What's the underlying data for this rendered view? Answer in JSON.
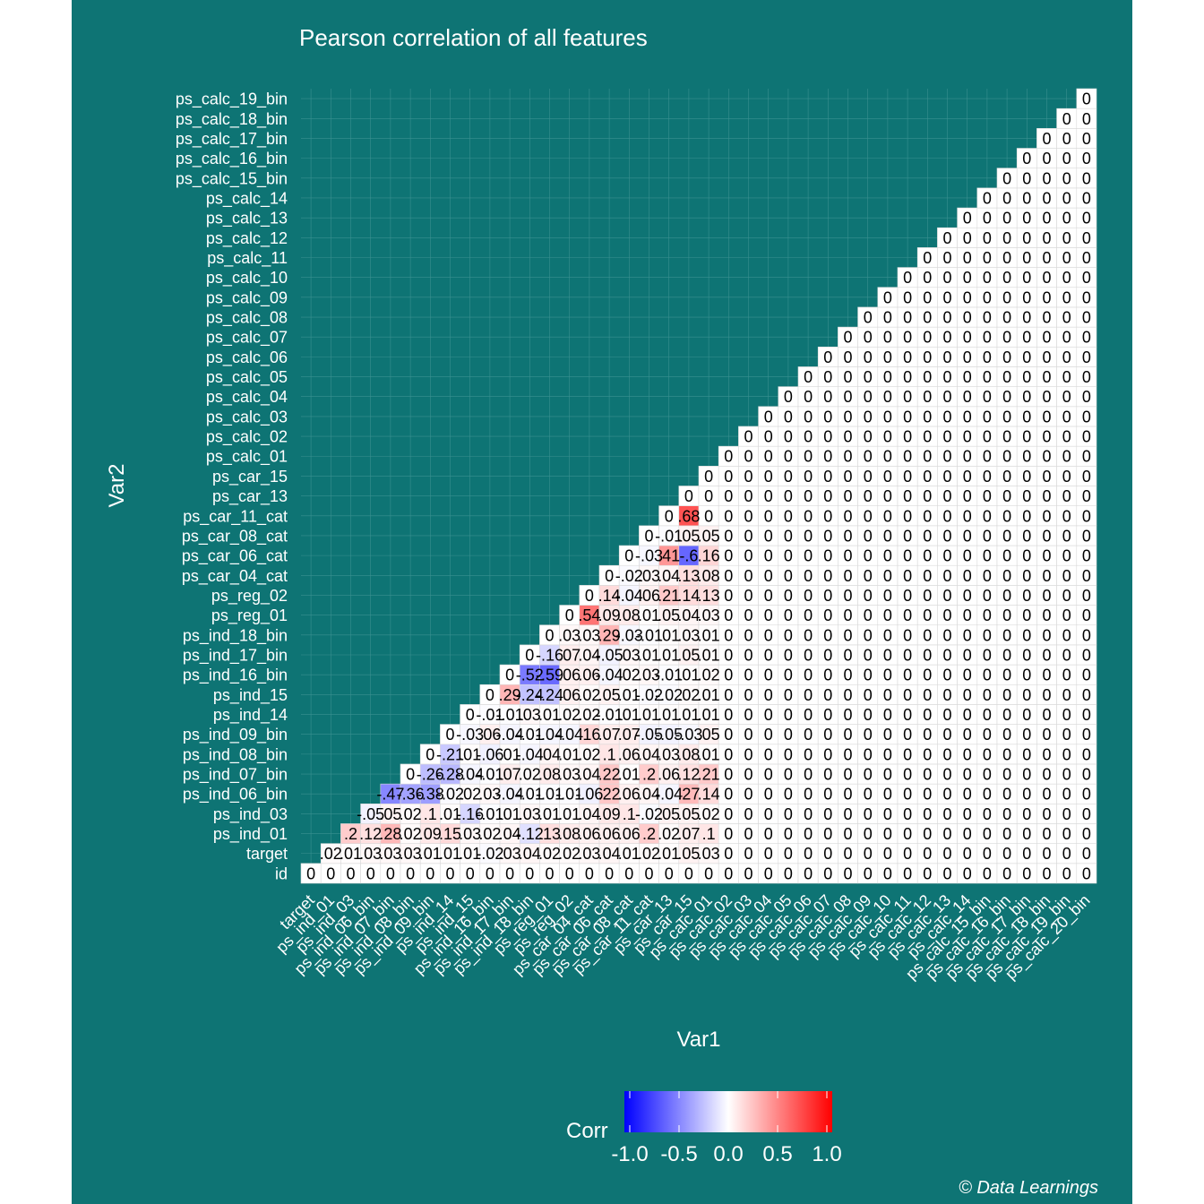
{
  "chart_data": {
    "type": "heatmap",
    "title": "Pearson correlation of all features",
    "xlabel": "Var1",
    "ylabel": "Var2",
    "caption": "© Data Learnings",
    "variables": [
      "id",
      "target",
      "ps_ind_01",
      "ps_ind_03",
      "ps_ind_06_bin",
      "ps_ind_07_bin",
      "ps_ind_08_bin",
      "ps_ind_09_bin",
      "ps_ind_14",
      "ps_ind_15",
      "ps_ind_16_bin",
      "ps_ind_17_bin",
      "ps_ind_18_bin",
      "ps_reg_01",
      "ps_reg_02",
      "ps_car_04_cat",
      "ps_car_06_cat",
      "ps_car_08_cat",
      "ps_car_11_cat",
      "ps_car_13",
      "ps_car_15",
      "ps_calc_01",
      "ps_calc_02",
      "ps_calc_03",
      "ps_calc_04",
      "ps_calc_05",
      "ps_calc_06",
      "ps_calc_07",
      "ps_calc_08",
      "ps_calc_09",
      "ps_calc_10",
      "ps_calc_11",
      "ps_calc_12",
      "ps_calc_13",
      "ps_calc_14",
      "ps_calc_15_bin",
      "ps_calc_16_bin",
      "ps_calc_17_bin",
      "ps_calc_18_bin",
      "ps_calc_19_bin",
      "ps_calc_20_bin"
    ],
    "x_tick_labels": [
      "target",
      "ps_ind_01",
      "ps_ind_03",
      "ps_ind_06_bin",
      "ps_ind_07_bin",
      "ps_ind_08_bin",
      "ps_ind_09_bin",
      "ps_ind_14",
      "ps_ind_15",
      "ps_ind_16_bin",
      "ps_ind_17_bin",
      "ps_ind_18_bin",
      "ps_reg_01",
      "ps_reg_02",
      "ps_car_04_cat",
      "ps_car_06_cat",
      "ps_car_08_cat",
      "ps_car_11_cat",
      "ps_car_13",
      "ps_car_15",
      "ps_calc_01",
      "ps_calc_02",
      "ps_calc_03",
      "ps_calc_04",
      "ps_calc_05",
      "ps_calc_06",
      "ps_calc_07",
      "ps_calc_08",
      "ps_calc_09",
      "ps_calc_10",
      "ps_calc_11",
      "ps_calc_12",
      "ps_calc_13",
      "ps_calc_14",
      "ps_calc_15_bin",
      "ps_calc_16_bin",
      "ps_calc_17_bin",
      "ps_calc_18_bin",
      "ps_calc_19_bin",
      "ps_calc_20_bin"
    ],
    "y_tick_labels": [
      "id",
      "target",
      "ps_ind_01",
      "ps_ind_03",
      "ps_ind_06_bin",
      "ps_ind_07_bin",
      "ps_ind_08_bin",
      "ps_ind_09_bin",
      "ps_ind_14",
      "ps_ind_15",
      "ps_ind_16_bin",
      "ps_ind_17_bin",
      "ps_ind_18_bin",
      "ps_reg_01",
      "ps_reg_02",
      "ps_car_04_cat",
      "ps_car_06_cat",
      "ps_car_08_cat",
      "ps_car_11_cat",
      "ps_car_13",
      "ps_car_15",
      "ps_calc_01",
      "ps_calc_02",
      "ps_calc_03",
      "ps_calc_04",
      "ps_calc_05",
      "ps_calc_06",
      "ps_calc_07",
      "ps_calc_08",
      "ps_calc_09",
      "ps_calc_10",
      "ps_calc_11",
      "ps_calc_12",
      "ps_calc_13",
      "ps_calc_14",
      "ps_calc_15_bin",
      "ps_calc_16_bin",
      "ps_calc_17_bin",
      "ps_calc_18_bin",
      "ps_calc_19_bin"
    ],
    "values_by_column": [
      [
        0
      ],
      [
        0,
        0.02
      ],
      [
        0,
        0.01,
        0.2
      ],
      [
        0,
        0.03,
        0.12,
        -0.05
      ],
      [
        0,
        0.03,
        0.28,
        0.05,
        -0.47
      ],
      [
        0,
        0.03,
        0.02,
        0.02,
        -0.36
      ],
      [
        0,
        0.01,
        0.09,
        0.1,
        -0.38,
        -0.26
      ],
      [
        0,
        0.01,
        0.15,
        0.01,
        -0.02,
        -0.28,
        -0.21
      ],
      [
        0,
        0.01,
        0.03,
        -0.16,
        0.02,
        -0.04,
        0.01,
        -0.03
      ],
      [
        0,
        -0.02,
        0.02,
        -0.01,
        0.03,
        -0.01,
        -0.06,
        0.06,
        -0.01
      ],
      [
        0,
        0.03,
        0.04,
        0.01,
        -0.04,
        0.07,
        0.01,
        -0.04,
        -0.01,
        0.29
      ],
      [
        0,
        0.04,
        -0.12,
        0.03,
        -0.01,
        0.02,
        -0.04,
        -0.01,
        0.03,
        -0.24,
        -0.52
      ],
      [
        0,
        0.02,
        0.13,
        0.01,
        -0.01,
        0.08,
        0.04,
        -0.04,
        0.01,
        -0.24,
        -0.59,
        -0.16
      ],
      [
        0,
        0.02,
        0.08,
        0.01,
        -0.01,
        0.03,
        0.01,
        -0.04,
        0.02,
        0.06,
        0.06,
        0.07,
        0.03
      ],
      [
        0,
        0.03,
        0.06,
        0.04,
        -0.06,
        0.04,
        0.02,
        0.16,
        0.02,
        0.02,
        0.06,
        0.04,
        0.03,
        0.54
      ],
      [
        0,
        0.04,
        0.06,
        0.09,
        0.22,
        0.22,
        0.1,
        0.07,
        -0.01,
        0.05,
        -0.04,
        -0.05,
        0.29,
        0.09,
        0.14
      ],
      [
        0,
        0.01,
        0.06,
        0.1,
        0.06,
        0.01,
        0.06,
        0.07,
        0.01,
        0.01,
        0.02,
        0.03,
        -0.03,
        0.08,
        -0.04,
        -0.02
      ],
      [
        0,
        0.02,
        0.2,
        -0.02,
        0.04,
        0.2,
        0.04,
        -0.05,
        0.01,
        -0.02,
        0.03,
        0.01,
        -0.01,
        0.01,
        0.06,
        0.03,
        -0.03
      ],
      [
        0,
        0.01,
        0.02,
        0.05,
        -0.04,
        0.06,
        0.03,
        -0.05,
        0.01,
        -0.02,
        -0.01,
        0.01,
        0.01,
        0.05,
        0.21,
        0.04,
        0.41,
        -0.01
      ],
      [
        0,
        0.05,
        0.07,
        0.05,
        0.27,
        0.12,
        0.08,
        -0.03,
        0.01,
        0.02,
        0.01,
        0.05,
        0.03,
        0.04,
        0.14,
        0.13,
        -0.6,
        0.05,
        0.68
      ],
      [
        0,
        0.03,
        0.1,
        0.02,
        0.14,
        0.21,
        0.01,
        0.05,
        0.01,
        0.01,
        0.02,
        0.01,
        0.01,
        0.03,
        0.13,
        0.08,
        0.16,
        0.05,
        0
      ]
    ],
    "zero_fill": "all cells with column index >= 20 (ps_calc_01 .. ps_calc_20_bin) and row index <= column index are 0",
    "legend": {
      "title": "Corr",
      "ticks": [
        "-1.0",
        "-0.5",
        "0.0",
        "0.5",
        "1.0"
      ],
      "low": "#0000ff",
      "mid": "#ffffff",
      "high": "#ff0000"
    },
    "colors": {
      "background": "#0e7474",
      "grid": "#3a9090",
      "cell_border": "#d9d9d9",
      "text": "#ffffff"
    },
    "label_format": "rounded to 2 decimals, leading zero dropped for |v|<1"
  }
}
